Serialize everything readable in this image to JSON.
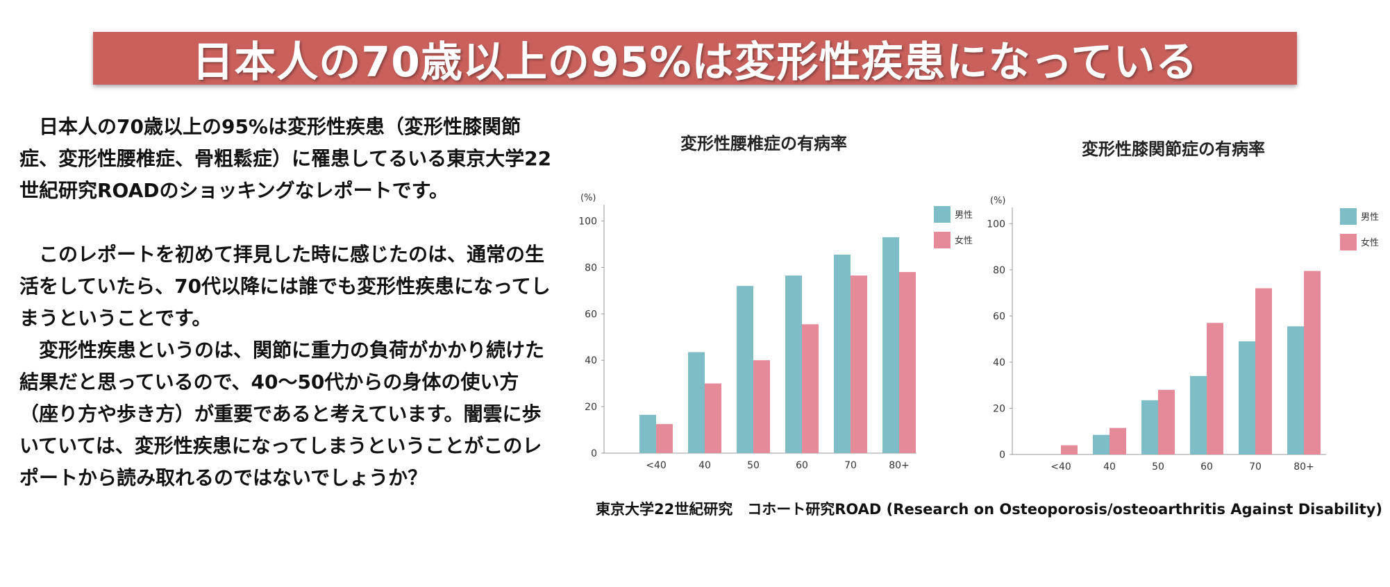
{
  "banner": {
    "title": "日本人の70歳以上の95%は変形性疾患になっている"
  },
  "body": {
    "paragraphs": [
      "日本人の70歳以上の95%は変形性疾患（変形性膝関節症、変形性腰椎症、骨粗鬆症）に罹患してるいる東京大学22世紀研究ROADのショッキングなレポートです。",
      "このレポートを初めて拝見した時に感じたのは、通常の生活をしていたら、70代以降には誰でも変形性疾患になってしまうということです。",
      "変形性疾患というのは、関節に重力の負荷がかかり続けた結果だと思っているので、40〜50代からの身体の使い方（座り方や歩き方）が重要であると考えています。闇雲に歩いていては、変形性疾患になってしまうということがこのレポートから読み取れるのではないでしょうか？"
    ]
  },
  "source": "東京大学22世紀研究　コホート研究ROAD (Research on Osteoporosis/osteoarthritis Against Disability)",
  "chart_data": [
    {
      "type": "bar",
      "title": "変形性腰椎症の有病率",
      "unit": "(%)",
      "categories": [
        "<40",
        "40",
        "50",
        "60",
        "70",
        "80+"
      ],
      "series": [
        {
          "name": "男性",
          "color": "#7fbdc6",
          "values": [
            16.5,
            43.5,
            72,
            76.5,
            85.5,
            93
          ]
        },
        {
          "name": "女性",
          "color": "#e48a98",
          "values": [
            12.5,
            30,
            40,
            55.5,
            76.5,
            78
          ]
        }
      ],
      "ylim": [
        0,
        110
      ],
      "yticks": [
        0,
        20,
        40,
        60,
        80,
        100
      ],
      "legend": "top-right",
      "grid": false
    },
    {
      "type": "bar",
      "title": "変形性膝関節症の有病率",
      "unit": "(%)",
      "categories": [
        "<40",
        "40",
        "50",
        "60",
        "70",
        "80+"
      ],
      "series": [
        {
          "name": "男性",
          "color": "#7fbdc6",
          "values": [
            0,
            8.5,
            23.5,
            34,
            49,
            55.5
          ]
        },
        {
          "name": "女性",
          "color": "#e48a98",
          "values": [
            4,
            11.5,
            28,
            57,
            72,
            79.5
          ]
        }
      ],
      "ylim": [
        0,
        110
      ],
      "yticks": [
        0,
        20,
        40,
        60,
        80,
        100
      ],
      "legend": "top-right",
      "grid": false
    }
  ]
}
